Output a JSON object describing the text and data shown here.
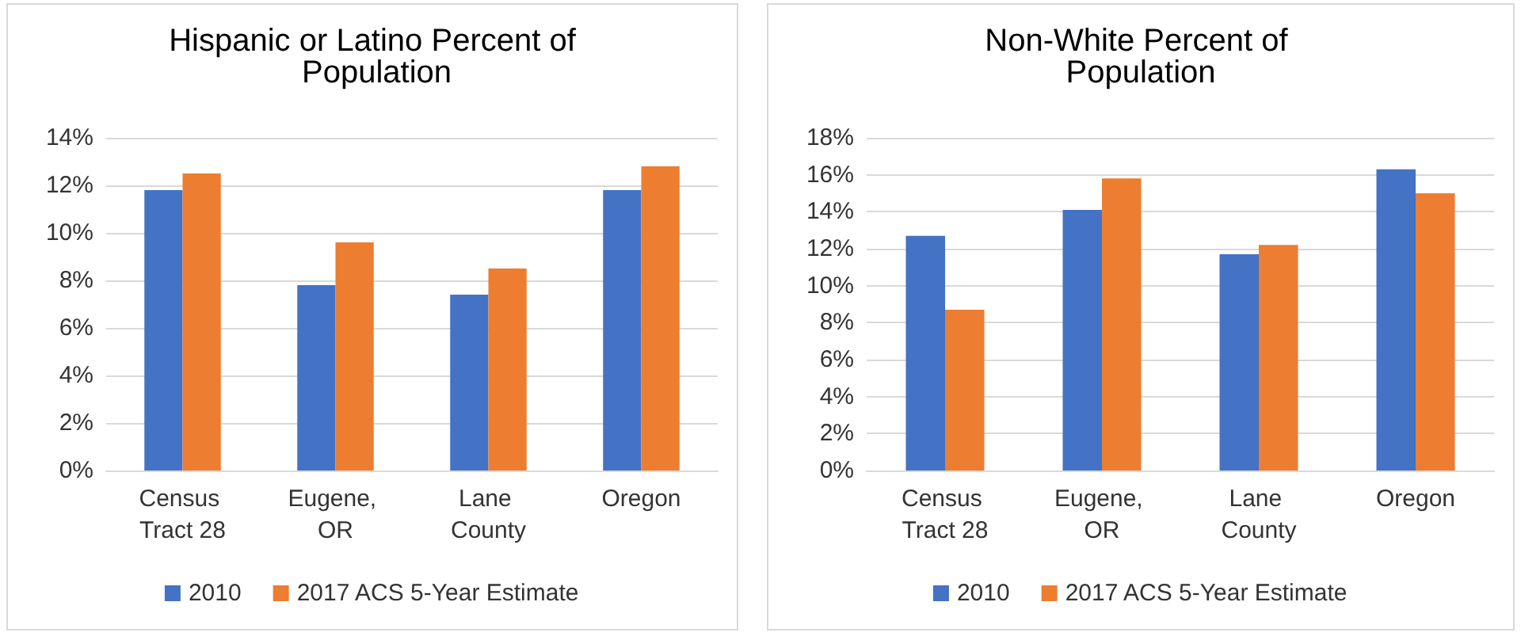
{
  "chart_data": [
    {
      "type": "bar",
      "title": "Hispanic or Latino Percent of Population",
      "categories": [
        "Census Tract 28",
        "Eugene, OR",
        "Lane County",
        "Oregon"
      ],
      "series": [
        {
          "name": "2010",
          "color": "#4472c4",
          "values": [
            11.8,
            7.8,
            7.4,
            11.8
          ]
        },
        {
          "name": "2017 ACS 5-Year Estimate",
          "color": "#ed7d31",
          "values": [
            12.5,
            9.6,
            8.5,
            12.8
          ]
        }
      ],
      "ylim": [
        0,
        14
      ],
      "yticks": [
        {
          "value": 0,
          "label": "0%"
        },
        {
          "value": 2,
          "label": "2%"
        },
        {
          "value": 4,
          "label": "4%"
        },
        {
          "value": 6,
          "label": "6%"
        },
        {
          "value": 8,
          "label": "8%"
        },
        {
          "value": 10,
          "label": "10%"
        },
        {
          "value": 12,
          "label": "12%"
        },
        {
          "value": 14,
          "label": "14%"
        }
      ],
      "grid": "y",
      "legend": "bottom"
    },
    {
      "type": "bar",
      "title": "Non-White Percent of Population",
      "categories": [
        "Census Tract 28",
        "Eugene, OR",
        "Lane County",
        "Oregon"
      ],
      "series": [
        {
          "name": "2010",
          "color": "#4472c4",
          "values": [
            12.7,
            14.1,
            11.7,
            16.3
          ]
        },
        {
          "name": "2017 ACS 5-Year Estimate",
          "color": "#ed7d31",
          "values": [
            8.7,
            15.8,
            12.2,
            15.0
          ]
        }
      ],
      "ylim": [
        0,
        18
      ],
      "yticks": [
        {
          "value": 0,
          "label": "0%"
        },
        {
          "value": 2,
          "label": "2%"
        },
        {
          "value": 4,
          "label": "4%"
        },
        {
          "value": 6,
          "label": "6%"
        },
        {
          "value": 8,
          "label": "8%"
        },
        {
          "value": 10,
          "label": "10%"
        },
        {
          "value": 12,
          "label": "12%"
        },
        {
          "value": 14,
          "label": "14%"
        },
        {
          "value": 16,
          "label": "16%"
        },
        {
          "value": 18,
          "label": "18%"
        }
      ],
      "grid": "y",
      "legend": "bottom"
    }
  ]
}
